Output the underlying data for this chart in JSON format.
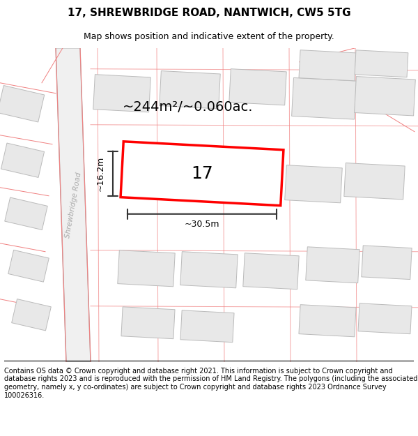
{
  "title": "17, SHREWBRIDGE ROAD, NANTWICH, CW5 5TG",
  "subtitle": "Map shows position and indicative extent of the property.",
  "footer": "Contains OS data © Crown copyright and database right 2021. This information is subject to Crown copyright and database rights 2023 and is reproduced with the permission of HM Land Registry. The polygons (including the associated geometry, namely x, y co-ordinates) are subject to Crown copyright and database rights 2023 Ordnance Survey 100026316.",
  "area_label": "~244m²/~0.060ac.",
  "width_label": "~30.5m",
  "height_label": "~16.2m",
  "road_label": "Shrewbridge Road",
  "plot_number": "17",
  "bg_color": "#f5f5f5",
  "map_bg": "#ffffff",
  "building_fill": "#e8e8e8",
  "building_stroke": "#cccccc",
  "road_fill": "#f0f0f0",
  "road_line_color": "#c0c0c0",
  "plot_stroke": "#ff0000",
  "plot_fill": "#ffffff",
  "pink_line_color": "#f08080",
  "dim_line_color": "#333333",
  "title_fontsize": 11,
  "subtitle_fontsize": 9,
  "footer_fontsize": 7
}
